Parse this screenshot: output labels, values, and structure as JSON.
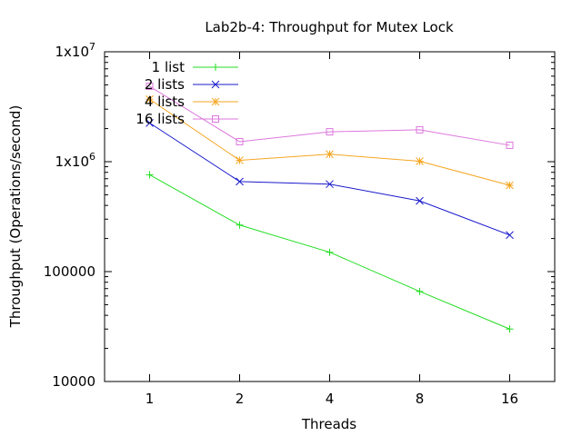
{
  "chart_data": {
    "type": "line",
    "title": "Lab2b-4: Throughput for Mutex Lock",
    "xlabel": "Threads",
    "ylabel": "Throughput (Operations/second)",
    "x_scale": "log2",
    "y_scale": "log10",
    "xlim": [
      0.707,
      22.63
    ],
    "ylim": [
      10000,
      10000000
    ],
    "x_ticks": [
      1,
      2,
      4,
      8,
      16
    ],
    "x_tick_labels": [
      "1",
      "2",
      "4",
      "8",
      "16"
    ],
    "y_ticks": [
      10000,
      100000,
      1000000,
      10000000
    ],
    "y_tick_labels": [
      {
        "base": "10000",
        "exp": ""
      },
      {
        "base": "100000",
        "exp": ""
      },
      {
        "base": "1x10",
        "exp": "6"
      },
      {
        "base": "1x10",
        "exp": "7"
      }
    ],
    "x": [
      1,
      2,
      4,
      8,
      16
    ],
    "legend_position": "top-left",
    "series": [
      {
        "name": "1 list",
        "color": "#22dd22",
        "marker": "plus",
        "values": [
          760000,
          265000,
          150000,
          66000,
          30000
        ]
      },
      {
        "name": "2 lists",
        "color": "#1a1acc",
        "marker": "cross",
        "values": [
          2250000,
          660000,
          625000,
          440000,
          215000
        ]
      },
      {
        "name": "4 lists",
        "color": "#f5a623",
        "marker": "star",
        "values": [
          3700000,
          1030000,
          1170000,
          1010000,
          610000
        ]
      },
      {
        "name": "16 lists",
        "color": "#dd77dd",
        "marker": "box",
        "values": [
          4850000,
          1520000,
          1870000,
          1950000,
          1410000
        ]
      }
    ]
  }
}
